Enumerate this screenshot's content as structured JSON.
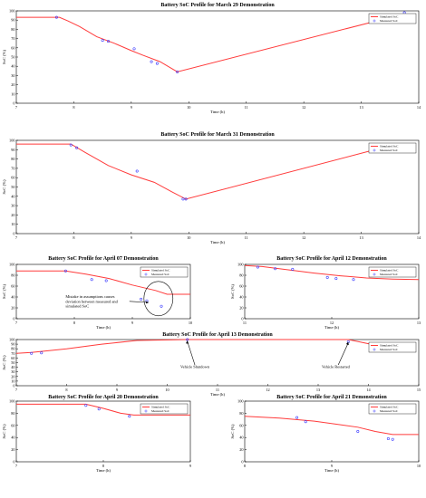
{
  "colors": {
    "simulated": "#ff3b3b",
    "measured": "#3a3aff",
    "axis": "#000000",
    "grid": "#cccccc"
  },
  "chart_data": [
    {
      "type": "line",
      "title": "Battery SoC Profile for March 29 Demonstration",
      "xlabel": "Time (h)",
      "ylabel": "SoC (%)",
      "xlim": [
        7,
        14
      ],
      "ylim": [
        0,
        100
      ],
      "xticks": [
        7,
        8,
        9,
        10,
        11,
        12,
        13,
        14
      ],
      "yticks": [
        0,
        10,
        20,
        30,
        40,
        50,
        60,
        70,
        80,
        90,
        100
      ],
      "legend": [
        "Simulated SoC",
        "Measured SoC"
      ],
      "legend_position": "top-right",
      "series": [
        {
          "name": "Simulated SoC",
          "x": [
            7.0,
            7.75,
            7.9,
            8.1,
            8.4,
            8.7,
            9.0,
            9.2,
            9.5,
            9.8,
            13.7
          ],
          "y": [
            93,
            93,
            89,
            83,
            72,
            65,
            57,
            52,
            45,
            34,
            96
          ]
        },
        {
          "name": "Measured SoC",
          "x": [
            7.7,
            8.5,
            8.6,
            9.05,
            9.35,
            9.45,
            9.8,
            13.75
          ],
          "y": [
            93,
            68,
            67,
            59,
            45,
            43,
            34,
            98
          ]
        }
      ]
    },
    {
      "type": "line",
      "title": "Battery SoC Profile for March 31 Demonstration",
      "xlabel": "Time (h)",
      "ylabel": "SoC (%)",
      "xlim": [
        7,
        14
      ],
      "ylim": [
        0,
        100
      ],
      "xticks": [
        7,
        8,
        9,
        10,
        11,
        12,
        13,
        14
      ],
      "yticks": [
        0,
        10,
        20,
        30,
        40,
        50,
        60,
        70,
        80,
        90,
        100
      ],
      "legend": [
        "Simulated SoC",
        "Measured SoC"
      ],
      "legend_position": "top-right",
      "series": [
        {
          "name": "Simulated SoC",
          "x": [
            7.0,
            7.95,
            8.2,
            8.6,
            9.0,
            9.4,
            9.7,
            9.95,
            13.3
          ],
          "y": [
            96,
            96,
            87,
            73,
            63,
            55,
            45,
            37,
            91
          ]
        },
        {
          "name": "Measured SoC",
          "x": [
            7.95,
            8.05,
            9.1,
            9.9,
            9.95,
            13.3
          ],
          "y": [
            95,
            92,
            67,
            37,
            37,
            88
          ]
        }
      ]
    },
    {
      "type": "line",
      "title": "Battery SoC Profile for April 07 Demonstration",
      "xlabel": "Time (h)",
      "ylabel": "SoC (%)",
      "xlim": [
        7,
        10
      ],
      "ylim": [
        0,
        100
      ],
      "xticks": [
        7,
        8,
        9,
        10
      ],
      "yticks": [
        0,
        20,
        40,
        60,
        80,
        100
      ],
      "legend": [
        "Simulated SoC",
        "Measured SoC"
      ],
      "legend_position": "top-right",
      "annotations": [
        "Mistake in assumptions causes deviation between measured and simulated SoC"
      ],
      "series": [
        {
          "name": "Simulated SoC",
          "x": [
            7.0,
            7.85,
            8.2,
            8.6,
            9.0,
            9.4,
            9.6,
            10.0
          ],
          "y": [
            88,
            88,
            82,
            74,
            62,
            52,
            45,
            45
          ]
        },
        {
          "name": "Measured SoC",
          "x": [
            7.85,
            8.3,
            8.55,
            9.15,
            9.25,
            9.5
          ],
          "y": [
            88,
            72,
            70,
            36,
            33,
            23
          ]
        }
      ]
    },
    {
      "type": "line",
      "title": "Battery SoC Profile for April 12 Demonstration",
      "xlabel": "Time (h)",
      "ylabel": "SoC (%)",
      "xlim": [
        11,
        13
      ],
      "ylim": [
        0,
        100
      ],
      "xticks": [
        11,
        12,
        13
      ],
      "yticks": [
        0,
        20,
        40,
        60,
        80,
        100
      ],
      "legend": [
        "Simulated SoC",
        "Measured SoC"
      ],
      "legend_position": "top-right",
      "series": [
        {
          "name": "Simulated SoC",
          "x": [
            11.0,
            11.2,
            11.5,
            11.8,
            12.1,
            12.4,
            12.7,
            13.0
          ],
          "y": [
            98,
            96,
            90,
            84,
            79,
            75,
            73,
            72
          ]
        },
        {
          "name": "Measured SoC",
          "x": [
            11.15,
            11.35,
            11.55,
            11.95,
            12.05,
            12.25
          ],
          "y": [
            95,
            92,
            91,
            76,
            74,
            72
          ]
        }
      ]
    },
    {
      "type": "line",
      "title": "Battery SoC Profile for April 13 Demonstration",
      "xlabel": "Time (h)",
      "ylabel": "SoC (%)",
      "xlim": [
        7,
        15
      ],
      "ylim": [
        0,
        100
      ],
      "xticks": [
        7,
        8,
        9,
        10,
        11,
        12,
        13,
        14,
        15
      ],
      "yticks": [
        0,
        10,
        20,
        30,
        40,
        50,
        60,
        70,
        80,
        90,
        100
      ],
      "legend": [
        "Simulated SoC",
        "Measured SoC"
      ],
      "legend_position": "top-right",
      "annotations": [
        "Vehicle Shutdown",
        "Vehicle Restarted"
      ],
      "series": [
        {
          "name": "Simulated SoC",
          "x": [
            7.0,
            7.3,
            8.0,
            8.7,
            9.4,
            10.4,
            13.6,
            14.0,
            14.25
          ],
          "y": [
            70,
            72,
            80,
            90,
            98,
            100,
            100,
            91,
            80
          ]
        },
        {
          "name": "Measured SoC",
          "x": [
            7.3,
            7.5,
            10.4,
            13.6,
            14.2
          ],
          "y": [
            70,
            71,
            100,
            95,
            77
          ]
        }
      ]
    },
    {
      "type": "line",
      "title": "Battery SoC Profile for April 20 Demonstration",
      "xlabel": "Time (h)",
      "ylabel": "SoC (%)",
      "xlim": [
        7,
        9
      ],
      "ylim": [
        0,
        100
      ],
      "xticks": [
        7,
        8,
        9
      ],
      "yticks": [
        0,
        20,
        40,
        60,
        80,
        100
      ],
      "legend": [
        "Simulated SoC",
        "Measured SoC"
      ],
      "legend_position": "top-right",
      "series": [
        {
          "name": "Simulated SoC",
          "x": [
            7.0,
            7.8,
            8.0,
            8.2,
            8.35,
            9.0
          ],
          "y": [
            95,
            95,
            88,
            80,
            77,
            77
          ]
        },
        {
          "name": "Measured SoC",
          "x": [
            7.8,
            7.95,
            8.3
          ],
          "y": [
            93,
            87,
            75
          ]
        }
      ]
    },
    {
      "type": "line",
      "title": "Battery SoC Profile for April 21 Demonstration",
      "xlabel": "Time (h)",
      "ylabel": "SoC (%)",
      "xlim": [
        8,
        10
      ],
      "ylim": [
        0,
        100
      ],
      "xticks": [
        8,
        9,
        10
      ],
      "yticks": [
        0,
        20,
        40,
        60,
        80,
        100
      ],
      "legend": [
        "Simulated SoC",
        "Measured SoC"
      ],
      "legend_position": "top-right",
      "series": [
        {
          "name": "Simulated SoC",
          "x": [
            8.0,
            8.4,
            8.8,
            9.3,
            9.5,
            9.7,
            10.0
          ],
          "y": [
            75,
            72,
            67,
            57,
            50,
            45,
            45
          ]
        },
        {
          "name": "Measured SoC",
          "x": [
            8.6,
            8.7,
            9.3,
            9.65,
            9.7
          ],
          "y": [
            73,
            66,
            50,
            38,
            37
          ]
        }
      ]
    }
  ]
}
